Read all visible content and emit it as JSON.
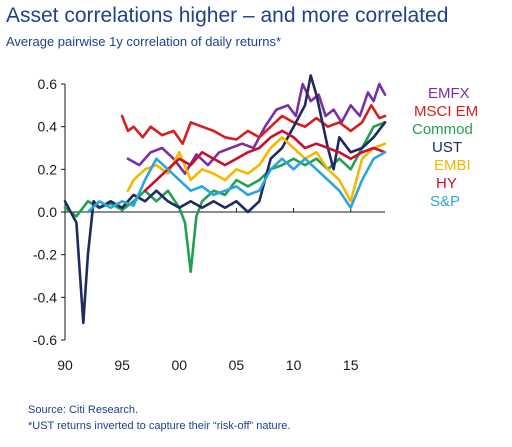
{
  "chart_data": {
    "type": "line",
    "title": "Asset correlations higher – and more correlated",
    "subtitle": "Average pairwise 1y correlation of daily returns*",
    "xlabel": "",
    "ylabel": "",
    "xlim": [
      1990,
      2018
    ],
    "ylim": [
      -0.6,
      0.6
    ],
    "x_ticks": [
      1990,
      1995,
      2000,
      2005,
      2010,
      2015
    ],
    "x_tick_labels": [
      "90",
      "95",
      "00",
      "05",
      "10",
      "15"
    ],
    "y_ticks": [
      -0.6,
      -0.4,
      -0.2,
      0.0,
      0.2,
      0.4,
      0.6
    ],
    "y_tick_labels": [
      "-0.6",
      "-0.4",
      "-0.2",
      "0.0",
      "0.2",
      "0.4",
      "0.6"
    ],
    "grid": false,
    "legend_position": "right",
    "series": [
      {
        "name": "EMFX",
        "color": "#7b2fa6",
        "points": [
          [
            1995.5,
            0.25
          ],
          [
            1996.5,
            0.22
          ],
          [
            1997.5,
            0.28
          ],
          [
            1998.5,
            0.3
          ],
          [
            1999.5,
            0.25
          ],
          [
            2000.5,
            0.18
          ],
          [
            2001.5,
            0.27
          ],
          [
            2002.5,
            0.22
          ],
          [
            2003.5,
            0.28
          ],
          [
            2004.5,
            0.3
          ],
          [
            2005.5,
            0.32
          ],
          [
            2006.5,
            0.3
          ],
          [
            2007.5,
            0.4
          ],
          [
            2008.5,
            0.48
          ],
          [
            2009.5,
            0.5
          ],
          [
            2010.2,
            0.45
          ],
          [
            2010.8,
            0.6
          ],
          [
            2011.5,
            0.52
          ],
          [
            2012.2,
            0.55
          ],
          [
            2012.8,
            0.45
          ],
          [
            2013.5,
            0.48
          ],
          [
            2014.2,
            0.42
          ],
          [
            2015,
            0.5
          ],
          [
            2015.8,
            0.45
          ],
          [
            2016.5,
            0.56
          ],
          [
            2017,
            0.52
          ],
          [
            2017.5,
            0.6
          ],
          [
            2018,
            0.55
          ]
        ]
      },
      {
        "name": "MSCI EM",
        "color": "#d42020",
        "points": [
          [
            1995,
            0.45
          ],
          [
            1995.5,
            0.38
          ],
          [
            1996,
            0.4
          ],
          [
            1996.8,
            0.35
          ],
          [
            1997.5,
            0.4
          ],
          [
            1998.5,
            0.36
          ],
          [
            1999.5,
            0.38
          ],
          [
            2000.3,
            0.32
          ],
          [
            2001,
            0.42
          ],
          [
            2002,
            0.4
          ],
          [
            2003,
            0.38
          ],
          [
            2004,
            0.35
          ],
          [
            2005,
            0.34
          ],
          [
            2006,
            0.38
          ],
          [
            2007,
            0.35
          ],
          [
            2008,
            0.4
          ],
          [
            2009,
            0.45
          ],
          [
            2010,
            0.42
          ],
          [
            2011,
            0.4
          ],
          [
            2012,
            0.44
          ],
          [
            2013,
            0.4
          ],
          [
            2014,
            0.42
          ],
          [
            2015,
            0.38
          ],
          [
            2016,
            0.42
          ],
          [
            2016.8,
            0.5
          ],
          [
            2017.5,
            0.44
          ],
          [
            2018,
            0.45
          ]
        ]
      },
      {
        "name": "Commod",
        "color": "#22a050",
        "points": [
          [
            1990,
            0.02
          ],
          [
            1991,
            -0.02
          ],
          [
            1992,
            0.05
          ],
          [
            1993,
            0.02
          ],
          [
            1994,
            0.04
          ],
          [
            1995,
            0.01
          ],
          [
            1996,
            0.05
          ],
          [
            1997,
            0.1
          ],
          [
            1998,
            0.05
          ],
          [
            1999,
            0.1
          ],
          [
            2000,
            0.02
          ],
          [
            2000.5,
            -0.05
          ],
          [
            2001,
            -0.28
          ],
          [
            2001.5,
            -0.02
          ],
          [
            2002,
            0.05
          ],
          [
            2003,
            0.1
          ],
          [
            2004,
            0.08
          ],
          [
            2005,
            0.15
          ],
          [
            2006,
            0.12
          ],
          [
            2007,
            0.15
          ],
          [
            2008,
            0.2
          ],
          [
            2009,
            0.22
          ],
          [
            2010,
            0.25
          ],
          [
            2011,
            0.22
          ],
          [
            2012,
            0.25
          ],
          [
            2013,
            0.2
          ],
          [
            2014,
            0.25
          ],
          [
            2015,
            0.2
          ],
          [
            2016,
            0.3
          ],
          [
            2017,
            0.4
          ],
          [
            2018,
            0.42
          ]
        ]
      },
      {
        "name": "UST",
        "color": "#1f2a60",
        "points": [
          [
            1990,
            0.05
          ],
          [
            1991,
            -0.05
          ],
          [
            1991.6,
            -0.52
          ],
          [
            1992,
            -0.2
          ],
          [
            1992.5,
            0.05
          ],
          [
            1993,
            0.02
          ],
          [
            1994,
            0.05
          ],
          [
            1995,
            0.02
          ],
          [
            1996,
            0.08
          ],
          [
            1997,
            0.05
          ],
          [
            1998,
            0.1
          ],
          [
            1999,
            0.05
          ],
          [
            2000,
            0.02
          ],
          [
            2001,
            0.05
          ],
          [
            2002,
            0.02
          ],
          [
            2003,
            0.05
          ],
          [
            2004,
            0.02
          ],
          [
            2005,
            0.05
          ],
          [
            2006,
            0.0
          ],
          [
            2007,
            0.05
          ],
          [
            2008,
            0.25
          ],
          [
            2009,
            0.3
          ],
          [
            2010,
            0.4
          ],
          [
            2011,
            0.5
          ],
          [
            2011.5,
            0.64
          ],
          [
            2012,
            0.55
          ],
          [
            2013,
            0.3
          ],
          [
            2013.5,
            0.2
          ],
          [
            2014,
            0.35
          ],
          [
            2015,
            0.28
          ],
          [
            2016,
            0.3
          ],
          [
            2017,
            0.35
          ],
          [
            2018,
            0.42
          ]
        ]
      },
      {
        "name": "EMBI",
        "color": "#f5b800",
        "points": [
          [
            1995.5,
            0.1
          ],
          [
            1996,
            0.15
          ],
          [
            1997,
            0.2
          ],
          [
            1998,
            0.22
          ],
          [
            1999,
            0.18
          ],
          [
            2000,
            0.28
          ],
          [
            2001,
            0.15
          ],
          [
            2002,
            0.2
          ],
          [
            2003,
            0.18
          ],
          [
            2004,
            0.15
          ],
          [
            2005,
            0.2
          ],
          [
            2006,
            0.18
          ],
          [
            2007,
            0.22
          ],
          [
            2008,
            0.3
          ],
          [
            2009,
            0.35
          ],
          [
            2010,
            0.3
          ],
          [
            2011,
            0.25
          ],
          [
            2012,
            0.28
          ],
          [
            2013,
            0.2
          ],
          [
            2014,
            0.15
          ],
          [
            2015,
            0.05
          ],
          [
            2016,
            0.25
          ],
          [
            2017,
            0.3
          ],
          [
            2018,
            0.32
          ]
        ]
      },
      {
        "name": "HY",
        "color": "#c8102e",
        "points": [
          [
            1997,
            0.1
          ],
          [
            1998,
            0.15
          ],
          [
            1999,
            0.2
          ],
          [
            2000,
            0.25
          ],
          [
            2001,
            0.22
          ],
          [
            2002,
            0.28
          ],
          [
            2003,
            0.25
          ],
          [
            2004,
            0.22
          ],
          [
            2005,
            0.25
          ],
          [
            2006,
            0.28
          ],
          [
            2007,
            0.3
          ],
          [
            2008,
            0.35
          ],
          [
            2009,
            0.38
          ],
          [
            2010,
            0.35
          ],
          [
            2011,
            0.3
          ],
          [
            2012,
            0.32
          ],
          [
            2013,
            0.3
          ],
          [
            2014,
            0.28
          ],
          [
            2015,
            0.25
          ],
          [
            2016,
            0.28
          ],
          [
            2017,
            0.3
          ],
          [
            2018,
            0.28
          ]
        ]
      },
      {
        "name": "S&P",
        "color": "#2aa6dc",
        "points": [
          [
            1992,
            0.0
          ],
          [
            1993,
            0.05
          ],
          [
            1994,
            0.02
          ],
          [
            1995,
            0.05
          ],
          [
            1996,
            0.03
          ],
          [
            1997,
            0.15
          ],
          [
            1998,
            0.25
          ],
          [
            1999,
            0.2
          ],
          [
            2000,
            0.15
          ],
          [
            2001,
            0.1
          ],
          [
            2002,
            0.12
          ],
          [
            2003,
            0.08
          ],
          [
            2004,
            0.1
          ],
          [
            2005,
            0.12
          ],
          [
            2006,
            0.08
          ],
          [
            2007,
            0.1
          ],
          [
            2008,
            0.2
          ],
          [
            2009,
            0.25
          ],
          [
            2010,
            0.2
          ],
          [
            2011,
            0.25
          ],
          [
            2012,
            0.2
          ],
          [
            2013,
            0.15
          ],
          [
            2014,
            0.1
          ],
          [
            2015,
            0.02
          ],
          [
            2016,
            0.15
          ],
          [
            2017,
            0.25
          ],
          [
            2018,
            0.28
          ]
        ]
      }
    ]
  },
  "source_note": "Source: Citi Research.",
  "footnote": "*UST returns inverted to capture their “risk-off” nature."
}
